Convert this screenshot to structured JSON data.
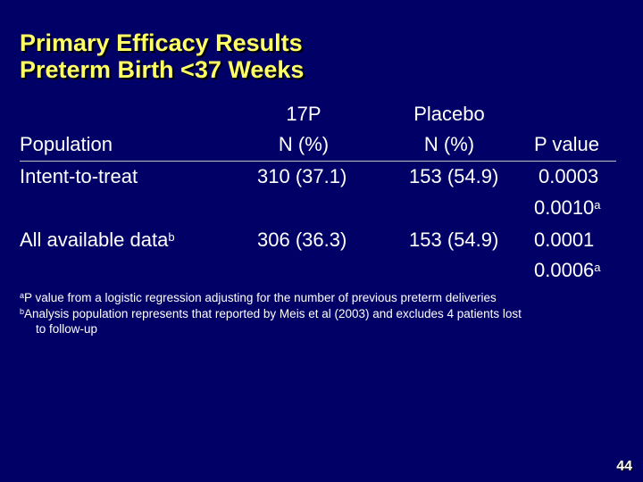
{
  "title": {
    "line1": "Primary Efficacy Results",
    "line2": "Preterm Birth <37 Weeks"
  },
  "table": {
    "header": {
      "population": "Population",
      "col_17p_line1": "17P",
      "col_17p_line2": "N (%)",
      "col_placebo_line1": "Placebo",
      "col_placebo_line2": "N (%)",
      "col_pvalue": "P value"
    },
    "rows": [
      {
        "label": "Intent-to-treat",
        "label_sup": "",
        "val_17p": "310 (37.1)",
        "val_placebo": "153 (54.9)",
        "p1": "0.0003",
        "p2": "0.0010",
        "p2_sup": "a"
      },
      {
        "label": "All available data",
        "label_sup": "b",
        "val_17p": "306 (36.3)",
        "val_placebo": "153 (54.9)",
        "p1": "0.0001",
        "p2": "0.0006",
        "p2_sup": "a"
      }
    ]
  },
  "footnotes": {
    "a_marker": "a",
    "a_text": "P value from a logistic regression adjusting for the number of previous preterm deliveries",
    "b_marker": "b",
    "b_text_line1": "Analysis population represents that reported by Meis et al (2003) and excludes 4 patients lost",
    "b_text_line2": "to follow-up"
  },
  "page_number": "44",
  "colors": {
    "background": "#000066",
    "title": "#ffff66",
    "text": "#ffffff"
  }
}
